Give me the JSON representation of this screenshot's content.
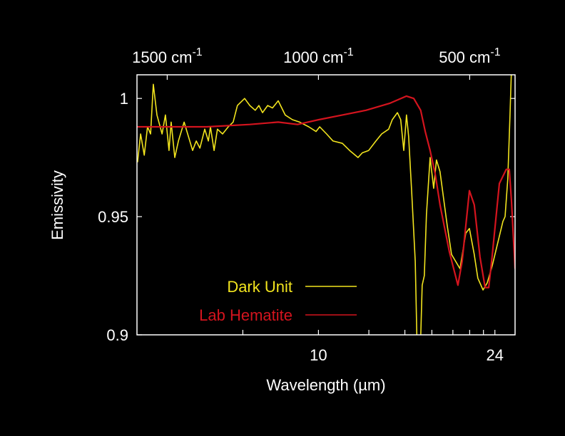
{
  "chart_data": {
    "type": "line",
    "xlabel": "Wavelength (µm)",
    "ylabel": "Emissivity",
    "x_units": "cm-1",
    "xlim": [
      1600,
      350
    ],
    "ylim": [
      0.9,
      1.01
    ],
    "x_scale": "linear in wavenumber (reversed)",
    "grid": false,
    "legend_placement": "bottom-left",
    "yticks": [
      {
        "value": 0.9,
        "label": "0.9"
      },
      {
        "value": 0.95,
        "label": "0.95"
      },
      {
        "value": 1,
        "label": "1"
      }
    ],
    "top_ticks": [
      {
        "value": 1500,
        "label": "1500 cm",
        "sup": "-1"
      },
      {
        "value": 1000,
        "label": "1000 cm",
        "sup": "-1"
      },
      {
        "value": 500,
        "label": "500 cm",
        "sup": "-1"
      }
    ],
    "bottom_ticks_um": [
      {
        "value": 8,
        "label": ""
      },
      {
        "value": 10,
        "label": "10"
      },
      {
        "value": 12,
        "label": ""
      },
      {
        "value": 14,
        "label": ""
      },
      {
        "value": 16,
        "label": ""
      },
      {
        "value": 18,
        "label": ""
      },
      {
        "value": 20,
        "label": ""
      },
      {
        "value": 22,
        "label": ""
      },
      {
        "value": 24,
        "label": "24"
      }
    ],
    "series": [
      {
        "name": "Dark Unit",
        "color": "#f2e41e",
        "points": [
          [
            1598,
            0.973
          ],
          [
            1588,
            0.985
          ],
          [
            1576,
            0.976
          ],
          [
            1565,
            0.988
          ],
          [
            1555,
            0.985
          ],
          [
            1546,
            1.006
          ],
          [
            1534,
            0.993
          ],
          [
            1517,
            0.985
          ],
          [
            1506,
            0.993
          ],
          [
            1494,
            0.978
          ],
          [
            1487,
            0.99
          ],
          [
            1475,
            0.975
          ],
          [
            1463,
            0.982
          ],
          [
            1444,
            0.99
          ],
          [
            1416,
            0.978
          ],
          [
            1404,
            0.982
          ],
          [
            1392,
            0.979
          ],
          [
            1376,
            0.987
          ],
          [
            1364,
            0.982
          ],
          [
            1357,
            0.988
          ],
          [
            1345,
            0.978
          ],
          [
            1334,
            0.987
          ],
          [
            1317,
            0.985
          ],
          [
            1298,
            0.988
          ],
          [
            1282,
            0.99
          ],
          [
            1268,
            0.997
          ],
          [
            1244,
            1.0
          ],
          [
            1227,
            0.997
          ],
          [
            1209,
            0.995
          ],
          [
            1197,
            0.997
          ],
          [
            1185,
            0.994
          ],
          [
            1168,
            0.997
          ],
          [
            1152,
            0.996
          ],
          [
            1133,
            0.999
          ],
          [
            1110,
            0.993
          ],
          [
            1086,
            0.991
          ],
          [
            1062,
            0.99
          ],
          [
            1032,
            0.988
          ],
          [
            1008,
            0.986
          ],
          [
            996,
            0.988
          ],
          [
            973,
            0.985
          ],
          [
            952,
            0.982
          ],
          [
            921,
            0.981
          ],
          [
            897,
            0.978
          ],
          [
            869,
            0.975
          ],
          [
            855,
            0.977
          ],
          [
            834,
            0.978
          ],
          [
            810,
            0.982
          ],
          [
            791,
            0.985
          ],
          [
            768,
            0.987
          ],
          [
            756,
            0.991
          ],
          [
            739,
            0.994
          ],
          [
            728,
            0.991
          ],
          [
            718,
            0.978
          ],
          [
            709,
            0.993
          ],
          [
            702,
            0.984
          ],
          [
            692,
            0.961
          ],
          [
            680,
            0.931
          ],
          [
            673,
            0.89
          ],
          [
            664,
            0.89
          ],
          [
            657,
            0.921
          ],
          [
            650,
            0.925
          ],
          [
            643,
            0.951
          ],
          [
            631,
            0.975
          ],
          [
            619,
            0.962
          ],
          [
            610,
            0.974
          ],
          [
            598,
            0.969
          ],
          [
            574,
            0.946
          ],
          [
            560,
            0.934
          ],
          [
            532,
            0.928
          ],
          [
            513,
            0.943
          ],
          [
            501,
            0.945
          ],
          [
            485,
            0.934
          ],
          [
            473,
            0.924
          ],
          [
            456,
            0.919
          ],
          [
            442,
            0.922
          ],
          [
            426,
            0.929
          ],
          [
            409,
            0.938
          ],
          [
            390,
            0.948
          ],
          [
            383,
            0.95
          ],
          [
            374,
            0.966
          ],
          [
            367,
            0.992
          ],
          [
            362,
            1.012
          ]
        ]
      },
      {
        "name": "Lab Hematite",
        "color": "#d4141e",
        "points": [
          [
            1600,
            0.988
          ],
          [
            1369,
            0.988
          ],
          [
            1227,
            0.989
          ],
          [
            1133,
            0.99
          ],
          [
            1069,
            0.989
          ],
          [
            999,
            0.991
          ],
          [
            921,
            0.993
          ],
          [
            843,
            0.995
          ],
          [
            763,
            0.998
          ],
          [
            709,
            1.001
          ],
          [
            685,
            1.0
          ],
          [
            662,
            0.995
          ],
          [
            647,
            0.986
          ],
          [
            631,
            0.978
          ],
          [
            614,
            0.968
          ],
          [
            598,
            0.955
          ],
          [
            567,
            0.935
          ],
          [
            539,
            0.921
          ],
          [
            525,
            0.931
          ],
          [
            501,
            0.961
          ],
          [
            485,
            0.955
          ],
          [
            466,
            0.933
          ],
          [
            449,
            0.92
          ],
          [
            437,
            0.92
          ],
          [
            426,
            0.933
          ],
          [
            402,
            0.964
          ],
          [
            379,
            0.97
          ],
          [
            369,
            0.97
          ],
          [
            362,
            0.957
          ],
          [
            350,
            0.928
          ]
        ]
      }
    ]
  }
}
